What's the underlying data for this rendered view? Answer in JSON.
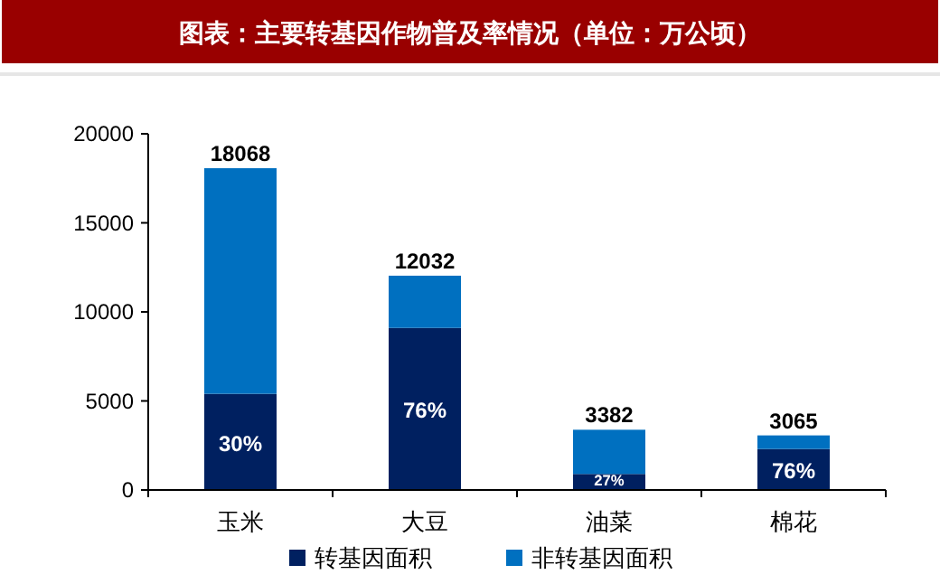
{
  "chart_data": {
    "type": "bar",
    "stacked": true,
    "title": "图表：主要转基因作物普及率情况（单位：万公顷）",
    "categories": [
      "玉米",
      "大豆",
      "油菜",
      "棉花"
    ],
    "series": [
      {
        "name": "转基因面积",
        "color": "#002060",
        "values": [
          5400,
          9100,
          900,
          2300
        ]
      },
      {
        "name": "非转基因面积",
        "color": "#0070c0",
        "values": [
          12668,
          2932,
          2482,
          765
        ]
      }
    ],
    "annotations": [
      "30%",
      "76%",
      "27%",
      "76%"
    ],
    "totals": [
      "18068",
      "12032",
      "3382",
      "3065"
    ],
    "ylim": [
      0,
      20000
    ],
    "yticks": [
      0,
      5000,
      10000,
      15000,
      20000
    ],
    "grid": false,
    "legend": "bottom"
  }
}
